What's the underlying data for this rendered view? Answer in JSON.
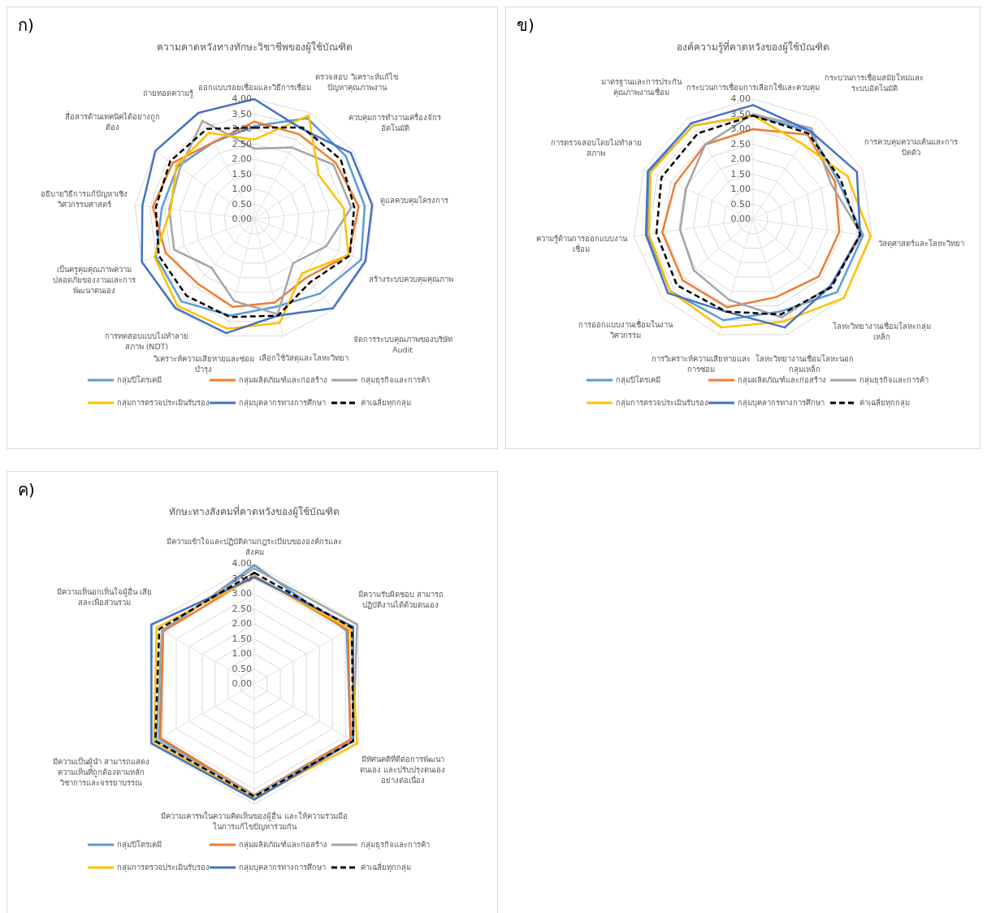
{
  "chart_data": [
    {
      "type": "radar",
      "title": "ความคาดหวังทางทักษะวิชาชีพของผู้ใช้บัณฑิต",
      "annotations": [
        "ก)"
      ],
      "categories": [
        "ออกแบบรอยเชื่อมและวิธีการเชื่อม",
        "ตรวจสอบ วิเคราะห์แก้ไขปัญหาคุณภาพงาน",
        "ควบคุมการทำงานเครื่องจักรอัตโนมัติ",
        "ดูแลควบคุมโครงการ",
        "สร้างระบบควบคุมคุณภาพ",
        "จัดการระบบคุณภาพของบริษัท Audit",
        "เลือกใช้วัสดุและโลหะวิทยา",
        "วิเคราะห์ความเสียหายและซ่อมบำรุง",
        "การทดสอบแบบไม่ทำลายสภาพ (NDT)",
        "เป็นครูคุมคุณภาพความปลอดภัยของงานและการพัฒนาตนเอง",
        "อธิบายวิธีการแก้ปัญหาเชิงวิศวกรรมศาสตร์",
        "สื่อสารด้านเทคนิคได้อย่างถูกต้อง",
        "ถ่ายทอดความรู้"
      ],
      "ylim": [
        0,
        4
      ],
      "yticks": [
        {
          "value": 0,
          "label": "0.00"
        },
        {
          "value": 0.5,
          "label": "0.50"
        },
        {
          "value": 1,
          "label": "1.00"
        },
        {
          "value": 1.5,
          "label": "1.50"
        },
        {
          "value": 2,
          "label": "2.00"
        },
        {
          "value": 2.5,
          "label": "2.50"
        },
        {
          "value": 3,
          "label": "3.00"
        },
        {
          "value": 3.5,
          "label": "3.50"
        },
        {
          "value": 4,
          "label": "4.00"
        }
      ],
      "grid": true,
      "legend": "bottom",
      "series": [
        {
          "name": "กลุ่มปิโตรเคมี",
          "color": "#5b9bd5",
          "values": [
            3.1,
            3.8,
            3.7,
            3.7,
            3.8,
            3.3,
            3.0,
            3.3,
            3.65,
            3.5,
            3.1,
            3.1,
            2.9
          ]
        },
        {
          "name": "กลุ่มผลิตภัณฑ์และก่อสร้าง",
          "color": "#ed7d31",
          "values": [
            3.25,
            3.2,
            3.3,
            3.5,
            3.35,
            2.6,
            2.85,
            3.0,
            2.85,
            3.15,
            3.4,
            3.3,
            2.9
          ]
        },
        {
          "name": "กลุ่มธุรกิจและการค้า",
          "color": "#a5a5a5",
          "values": [
            2.35,
            2.7,
            3.2,
            3.25,
            2.55,
            1.95,
            3.25,
            2.8,
            2.15,
            2.85,
            2.85,
            3.0,
            3.7
          ]
        },
        {
          "name": "กลุ่มการตรวจประเมินรับรอง",
          "color": "#ffc000",
          "values": [
            2.65,
            3.9,
            2.6,
            3.0,
            3.35,
            2.4,
            3.55,
            3.75,
            3.85,
            3.55,
            2.8,
            3.15,
            3.25
          ]
        },
        {
          "name": "กลุ่มบุคลากรทางการศึกษา",
          "color": "#4472c4",
          "values": [
            4.0,
            3.4,
            3.9,
            3.95,
            3.95,
            3.95,
            3.3,
            3.9,
            3.95,
            4.0,
            3.75,
            4.0,
            4.0
          ]
        },
        {
          "name": "ค่าเฉลี่ยทุกกลุ่ม",
          "color": "#000000",
          "line_style": "dashed",
          "values": [
            3.05,
            3.45,
            3.5,
            3.35,
            3.4,
            2.8,
            3.3,
            3.35,
            3.4,
            3.4,
            3.3,
            3.4,
            3.4
          ]
        }
      ]
    },
    {
      "type": "radar",
      "title": "องค์ความรู้ที่คาดหวังของผู้ใช้บัณฑิต",
      "annotations": [
        "ข)"
      ],
      "categories": [
        "กระบวนการเชื่อมการเลือกใช้และควบคุม",
        "กระบวนการเชื่อมสมัยใหม่และระบบอัตโนมัติ",
        "การควบคุมความเค้นและการบิดตัว",
        "วัสดุศาสตร์และโลหะวิทยา",
        "โลหะวิทยางานเชื่อมโลหะกลุ่มเหล็ก",
        "โลหะวิทยางานเชื่อมโลหะนอกกลุ่มเหล็ก",
        "การวิเคราะห์ความเสียหายและการซ่อม",
        "การออกแบบงานเชื่อมในงานวิศวกรรม",
        "ความรู้ด้านการออกแบบงานเชื่อม",
        "การตรวจสอบโดยไม่ทำลายสภาพ",
        "มาตรฐานและการประกันคุณภาพงานเชื่อม"
      ],
      "ylim": [
        0,
        4
      ],
      "yticks": [
        {
          "value": 0,
          "label": "0.00"
        },
        {
          "value": 0.5,
          "label": "0.50"
        },
        {
          "value": 1,
          "label": "1.00"
        },
        {
          "value": 1.5,
          "label": "1.50"
        },
        {
          "value": 2,
          "label": "2.00"
        },
        {
          "value": 2.5,
          "label": "2.50"
        },
        {
          "value": 3,
          "label": "3.00"
        },
        {
          "value": 3.5,
          "label": "3.50"
        },
        {
          "value": 4,
          "label": "4.00"
        }
      ],
      "grid": true,
      "legend": "bottom",
      "series": [
        {
          "name": "กลุ่มปิโตรเคมี",
          "color": "#5b9bd5",
          "values": [
            3.45,
            3.5,
            3.1,
            3.7,
            3.7,
            3.2,
            3.5,
            3.65,
            3.55,
            3.8,
            3.7
          ]
        },
        {
          "name": "กลุ่มผลิตภัณฑ์และก่อสร้าง",
          "color": "#ed7d31",
          "values": [
            3.0,
            3.35,
            3.0,
            2.9,
            2.9,
            2.7,
            3.05,
            3.1,
            3.05,
            2.85,
            2.95
          ]
        },
        {
          "name": "กลุ่มธุรกิจและการค้า",
          "color": "#a5a5a5",
          "values": [
            3.5,
            3.6,
            2.85,
            3.65,
            3.4,
            3.4,
            2.8,
            2.6,
            2.45,
            2.45,
            2.95
          ]
        },
        {
          "name": "กลุ่มการตรวจประเมินรับรอง",
          "color": "#ffc000",
          "values": [
            3.45,
            3.0,
            3.45,
            3.95,
            4.0,
            3.55,
            3.75,
            3.65,
            3.5,
            3.75,
            3.7
          ]
        },
        {
          "name": "กลุ่มบุคลากรทางการศึกษา",
          "color": "#4472c4",
          "values": [
            3.8,
            3.5,
            3.8,
            3.6,
            3.4,
            3.75,
            3.2,
            3.75,
            3.6,
            3.85,
            3.8
          ]
        },
        {
          "name": "ค่าเฉลี่ยทุกกลุ่ม",
          "color": "#000000",
          "line_style": "dashed",
          "values": [
            3.45,
            3.4,
            3.2,
            3.6,
            3.45,
            3.3,
            3.2,
            3.35,
            3.25,
            3.35,
            3.4
          ]
        }
      ]
    },
    {
      "type": "radar",
      "title": "ทักษะทางสังคมที่คาดหวังของผู้ใช้บัณฑิต",
      "annotations": [
        "ค)"
      ],
      "categories": [
        "มีความเข้าใจและปฏิบัติตามกฎระเบียบขององค์กรและสังคม",
        "มีความรับผิดชอบ สามารถปฏิบัติงานได้ด้วยตนเอง",
        "มีทัศนคติที่ดีต่อการพัฒนาตนเอง และปรับปรุงตนเองอย่างต่อเนื่อง",
        "มีความเคารพในความคิดเห็นของผู้อื่น และให้ความร่วมมือในการแก้ไขปัญหาร่วมกัน",
        "มีความเป็นผู้นำ สามารถแสดงความเห็นที่ถูกต้องตามหลักวิชาการและจรรยาบรรณ",
        "มีความเห็นอกเห็นใจผู้อื่น เสียสละเพื่อส่วนรวม"
      ],
      "ylim": [
        0,
        4
      ],
      "yticks": [
        {
          "value": 0,
          "label": "0.00"
        },
        {
          "value": 0.5,
          "label": "0.50"
        },
        {
          "value": 1,
          "label": "1.00"
        },
        {
          "value": 1.5,
          "label": "1.50"
        },
        {
          "value": 2,
          "label": "2.00"
        },
        {
          "value": 2.5,
          "label": "2.50"
        },
        {
          "value": 3,
          "label": "3.00"
        },
        {
          "value": 3.5,
          "label": "3.50"
        },
        {
          "value": 4,
          "label": "4.00"
        }
      ],
      "grid": true,
      "legend": "bottom",
      "series": [
        {
          "name": "กลุ่มปิโตรเคมี",
          "color": "#5b9bd5",
          "values": [
            3.95,
            3.55,
            3.7,
            3.7,
            3.65,
            3.5
          ]
        },
        {
          "name": "กลุ่มผลิตภัณฑ์และก่อสร้าง",
          "color": "#ed7d31",
          "values": [
            3.6,
            3.6,
            3.7,
            3.7,
            3.6,
            3.5
          ]
        },
        {
          "name": "กลุ่มธุรกิจและการค้า",
          "color": "#a5a5a5",
          "values": [
            3.85,
            3.95,
            3.8,
            3.7,
            3.75,
            3.55
          ]
        },
        {
          "name": "กลุ่มการตรวจประเมินรับรอง",
          "color": "#ffc000",
          "values": [
            3.55,
            3.7,
            3.95,
            3.8,
            3.85,
            3.75
          ]
        },
        {
          "name": "กลุ่มบุคลากรทางการศึกษา",
          "color": "#4472c4",
          "values": [
            3.55,
            3.8,
            3.8,
            3.85,
            3.95,
            3.95
          ]
        },
        {
          "name": "ค่าเฉลี่ยทุกกลุ่ม",
          "color": "#000000",
          "line_style": "dashed",
          "values": [
            3.7,
            3.75,
            3.8,
            3.75,
            3.8,
            3.65
          ]
        }
      ]
    }
  ]
}
